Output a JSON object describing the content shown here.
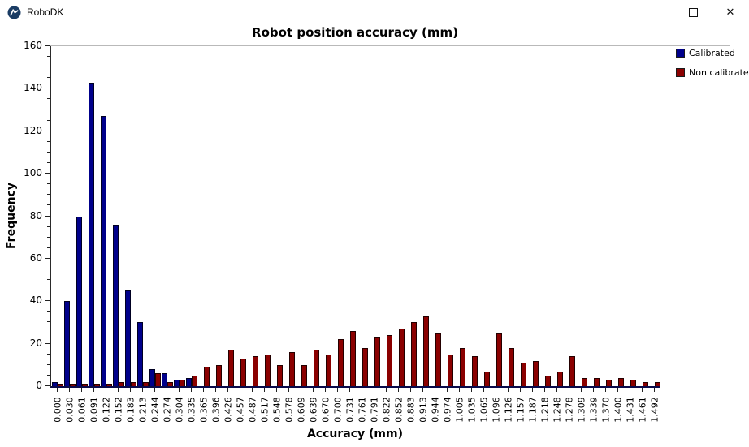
{
  "titlebar": {
    "app_title": "RoboDK",
    "minimize_glyph": "–",
    "close_glyph": "✕"
  },
  "chart_data": {
    "type": "bar",
    "title": "Robot position accuracy (mm)",
    "xlabel": "Accuracy (mm)",
    "ylabel": "Frequency",
    "ylim": [
      0,
      160
    ],
    "y_major_step": 20,
    "y_minor_step": 5,
    "grid": false,
    "legend_position": "top-right-outside",
    "categories": [
      "0.000",
      "0.030",
      "0.061",
      "0.091",
      "0.122",
      "0.152",
      "0.183",
      "0.213",
      "0.244",
      "0.274",
      "0.304",
      "0.335",
      "0.365",
      "0.396",
      "0.426",
      "0.457",
      "0.487",
      "0.517",
      "0.548",
      "0.578",
      "0.609",
      "0.639",
      "0.670",
      "0.700",
      "0.731",
      "0.761",
      "0.791",
      "0.822",
      "0.852",
      "0.883",
      "0.913",
      "0.944",
      "0.974",
      "1.005",
      "1.035",
      "1.065",
      "1.096",
      "1.126",
      "1.157",
      "1.187",
      "1.218",
      "1.248",
      "1.278",
      "1.309",
      "1.339",
      "1.370",
      "1.400",
      "1.431",
      "1.461",
      "1.492"
    ],
    "series": [
      {
        "name": "Calibrated",
        "color": "#00008B",
        "values": [
          2,
          40,
          80,
          143,
          127,
          76,
          45,
          30,
          8,
          6,
          3,
          4,
          0,
          0,
          0,
          0,
          0,
          0,
          0,
          0,
          0,
          0,
          0,
          0,
          0,
          0,
          0,
          0,
          0,
          0,
          0,
          0,
          0,
          0,
          0,
          0,
          0,
          0,
          0,
          0,
          0,
          0,
          0,
          0,
          0,
          0,
          0,
          0,
          0,
          0
        ]
      },
      {
        "name": "Non calibrated",
        "color": "#8B0000",
        "values": [
          1,
          1,
          1,
          1,
          1,
          2,
          2,
          2,
          6,
          2,
          3,
          5,
          9,
          10,
          17,
          13,
          14,
          15,
          10,
          16,
          10,
          17,
          15,
          22,
          26,
          18,
          23,
          24,
          27,
          30,
          33,
          25,
          15,
          18,
          14,
          7,
          25,
          18,
          11,
          12,
          5,
          7,
          14,
          4,
          4,
          3,
          4,
          3,
          2,
          2
        ]
      }
    ]
  }
}
